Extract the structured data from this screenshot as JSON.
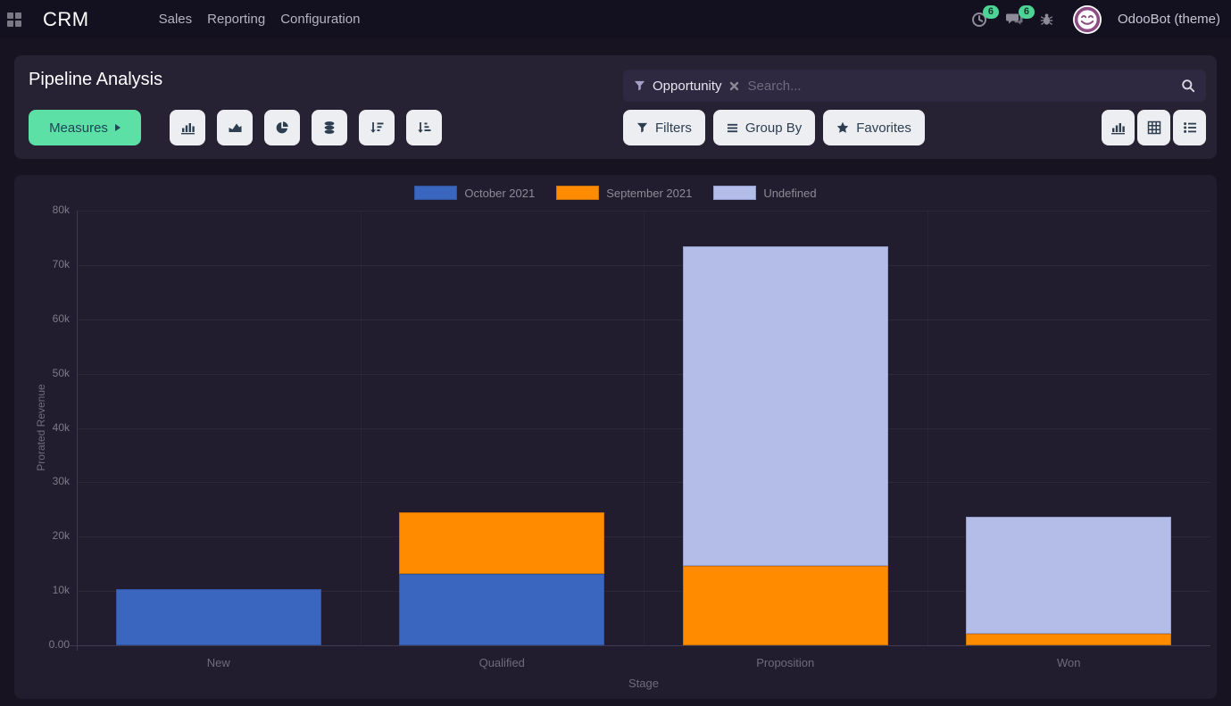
{
  "navbar": {
    "brand": "CRM",
    "menus": [
      {
        "label": "Sales"
      },
      {
        "label": "Reporting"
      },
      {
        "label": "Configuration"
      }
    ],
    "badges": {
      "activities": "6",
      "messages": "6"
    },
    "user": "OdooBot (theme)"
  },
  "control_panel": {
    "title": "Pipeline Analysis",
    "measures_label": "Measures",
    "search": {
      "facet": "Opportunity",
      "placeholder": "Search..."
    },
    "buttons": {
      "filters": "Filters",
      "group_by": "Group By",
      "favorites": "Favorites"
    }
  },
  "chart_data": {
    "type": "bar",
    "stacked": true,
    "title": "",
    "xlabel": "Stage",
    "ylabel": "Prorated Revenue",
    "categories": [
      "New",
      "Qualified",
      "Proposition",
      "Won"
    ],
    "series": [
      {
        "name": "October 2021",
        "color": "#3b66c0",
        "border": "#2f54a0",
        "values": [
          10400,
          13100,
          0,
          0
        ]
      },
      {
        "name": "September 2021",
        "color": "#ff8c00",
        "border": "#cf7300",
        "values": [
          0,
          11400,
          14600,
          2100
        ]
      },
      {
        "name": "Undefined",
        "color": "#b4bce8",
        "border": "#949ecf",
        "values": [
          0,
          0,
          58900,
          21600
        ]
      }
    ],
    "ylim": [
      0,
      80000
    ],
    "yticks": [
      "0.00",
      "10k",
      "20k",
      "30k",
      "40k",
      "50k",
      "60k",
      "70k",
      "80k"
    ],
    "legend_position": "top",
    "grid": true
  }
}
